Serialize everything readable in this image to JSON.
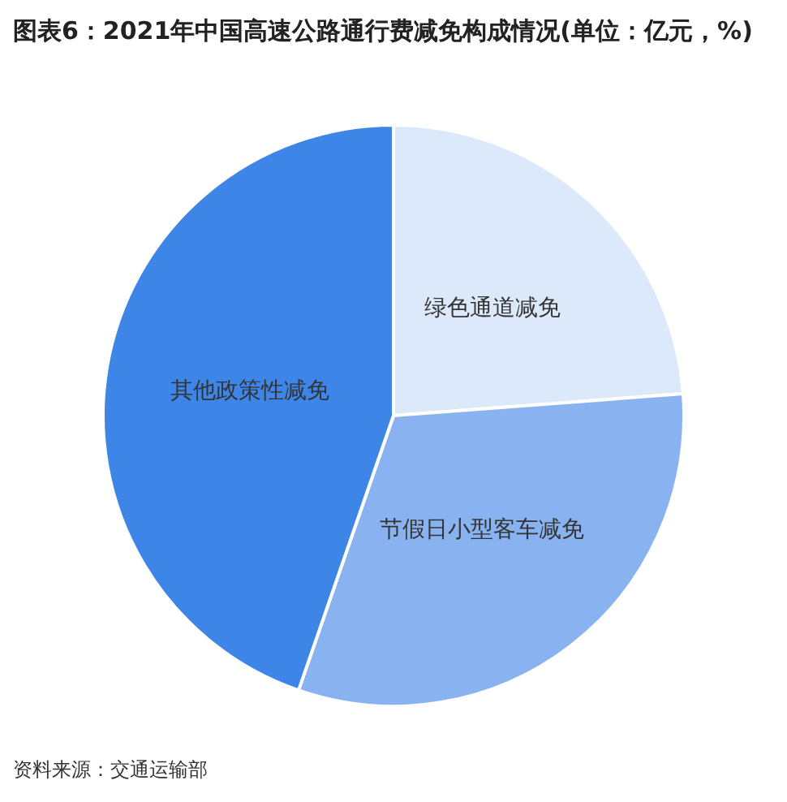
{
  "chart_data": {
    "type": "pie",
    "title": "图表6：2021年中国高速公路通行费减免构成情况(单位：亿元，%)",
    "categories": [
      "绿色通道减免",
      "节假日小型客车减免",
      "其他政策性减免"
    ],
    "values": [
      23.8,
      31.5,
      44.7
    ],
    "colors": [
      "#dce9fb",
      "#88b3f0",
      "#3d86e8"
    ],
    "legend": false,
    "annotations": [
      "资料来源：交通运输部"
    ]
  }
}
